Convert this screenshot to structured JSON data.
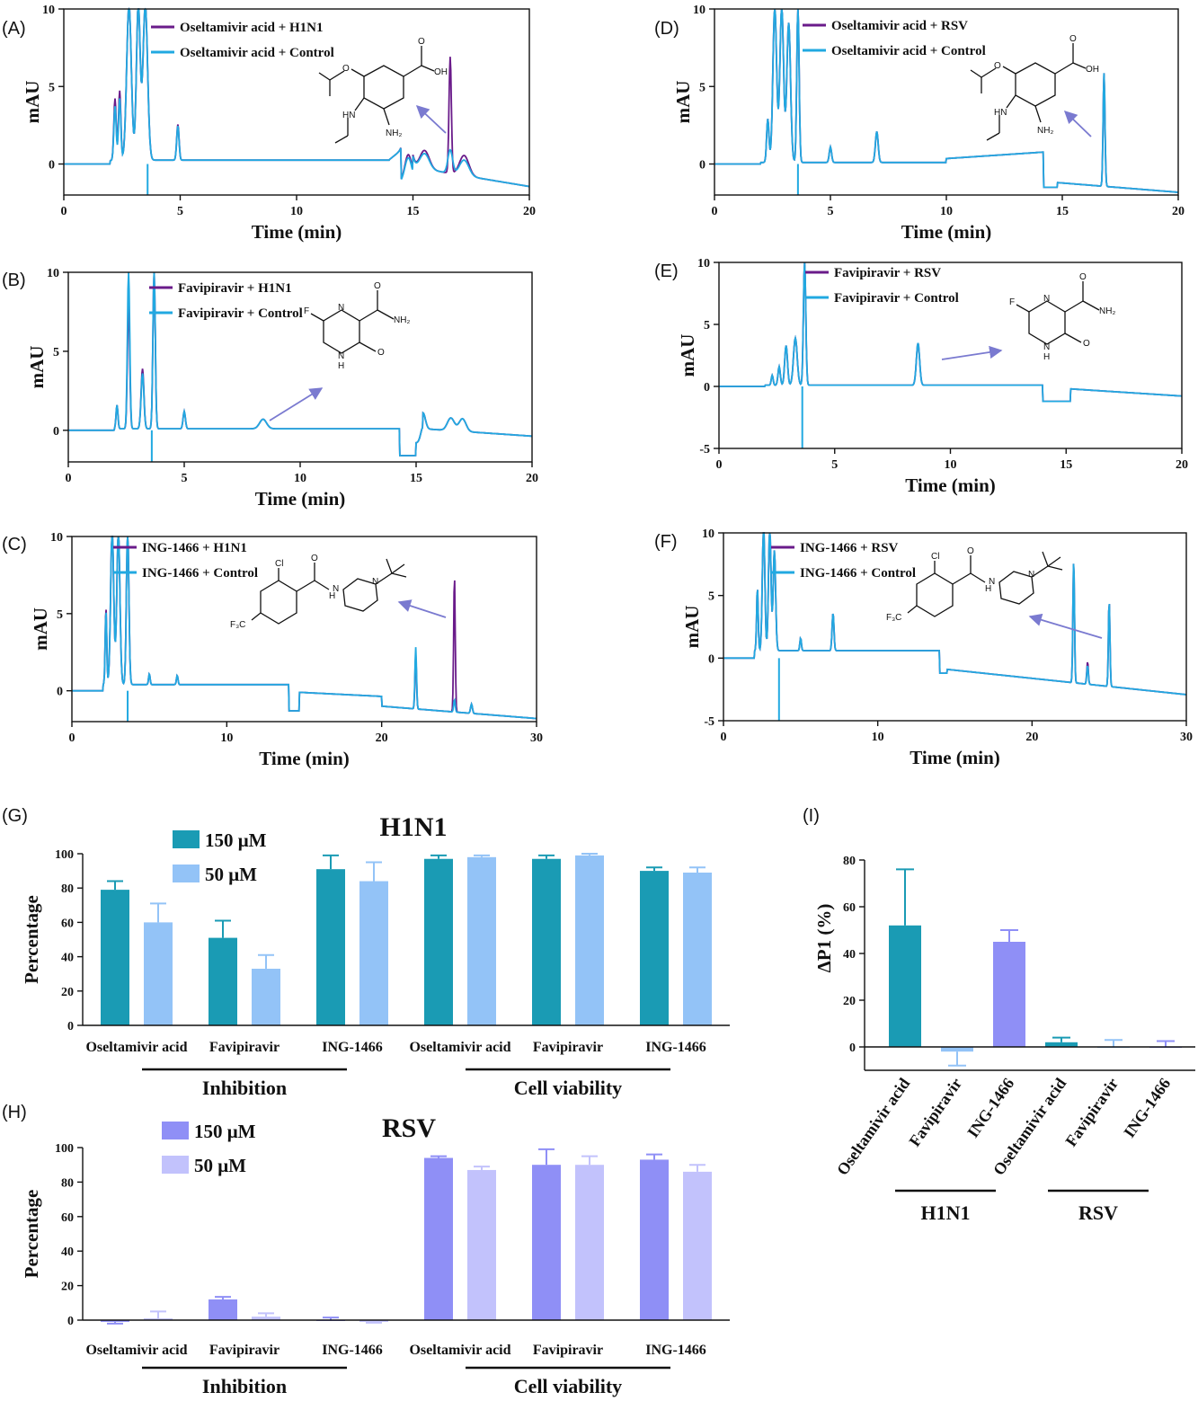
{
  "colors": {
    "treated_trace": "#6a1b8a",
    "control_trace": "#21a9e1",
    "h1n1_150": "#1a9bb4",
    "h1n1_50": "#93c3f7",
    "rsv_150": "#8f8ff6",
    "rsv_50": "#c2c2fc",
    "arrow": "#7a7ad0"
  },
  "chromatograms": [
    {
      "id": "A",
      "panel": "(A)",
      "type": "line",
      "xlabel": "Time (min)",
      "ylabel": "mAU",
      "xlim": [
        0,
        20
      ],
      "ylim": [
        -2,
        10
      ],
      "xticks": [
        "0",
        "5",
        "10",
        "15",
        "20"
      ],
      "yticks": [
        "0",
        "5",
        "10"
      ],
      "series": [
        {
          "name": "Oseltamivir acid + H1N1",
          "color": "#6a1b8a",
          "peaks": [
            [
              2.2,
              4,
              0.05
            ],
            [
              2.4,
              4.5,
              0.05
            ],
            [
              2.8,
              10,
              0.1
            ],
            [
              3.2,
              10,
              0.08
            ],
            [
              3.5,
              10,
              0.1
            ],
            [
              4.9,
              2.3,
              0.05
            ],
            [
              14.8,
              1.8,
              0.15
            ],
            [
              15.5,
              1.2,
              0.2
            ],
            [
              16.6,
              7.5,
              0.05
            ],
            [
              17.2,
              1.3,
              0.2
            ]
          ]
        },
        {
          "name": "Oseltamivir acid + Control",
          "color": "#21a9e1",
          "peaks": [
            [
              2.2,
              3.5,
              0.05
            ],
            [
              2.4,
              4,
              0.05
            ],
            [
              2.8,
              10,
              0.1
            ],
            [
              3.2,
              10,
              0.08
            ],
            [
              3.5,
              10,
              0.1
            ],
            [
              4.9,
              2.2,
              0.05
            ],
            [
              14.8,
              1.6,
              0.15
            ],
            [
              15.5,
              1,
              0.2
            ],
            [
              16.6,
              1.5,
              0.1
            ],
            [
              17.2,
              1,
              0.2
            ]
          ]
        }
      ],
      "molecule": "oseltamivir"
    },
    {
      "id": "B",
      "panel": "(B)",
      "type": "line",
      "xlabel": "Time (min)",
      "ylabel": "mAU",
      "xlim": [
        0,
        20
      ],
      "ylim": [
        -2,
        10
      ],
      "xticks": [
        "0",
        "5",
        "10",
        "15",
        "20"
      ],
      "yticks": [
        "0",
        "5",
        "10"
      ],
      "series": [
        {
          "name": "Favipiravir + H1N1",
          "color": "#6a1b8a",
          "peaks": [
            [
              2.1,
              1.5,
              0.04
            ],
            [
              2.6,
              8,
              0.05
            ],
            [
              3.2,
              3.8,
              0.06
            ],
            [
              3.7,
              10,
              0.05
            ],
            [
              5,
              1.1,
              0.05
            ],
            [
              8.4,
              0.6,
              0.15
            ],
            [
              15.3,
              1,
              0.1
            ],
            [
              16.5,
              0.8,
              0.15
            ],
            [
              17,
              0.8,
              0.15
            ]
          ]
        },
        {
          "name": "Favipiravir + Control",
          "color": "#21a9e1",
          "peaks": [
            [
              2.1,
              1.5,
              0.04
            ],
            [
              2.6,
              10,
              0.05
            ],
            [
              3.2,
              3.5,
              0.06
            ],
            [
              3.7,
              10,
              0.05
            ],
            [
              5,
              1.1,
              0.05
            ],
            [
              8.4,
              0.6,
              0.15
            ],
            [
              15.3,
              1,
              0.1
            ],
            [
              16.5,
              0.8,
              0.15
            ],
            [
              17,
              0.8,
              0.15
            ]
          ]
        }
      ],
      "molecule": "favipiravir"
    },
    {
      "id": "C",
      "panel": "(C)",
      "type": "line",
      "xlabel": "Time (min)",
      "ylabel": "mAU",
      "xlim": [
        0,
        30
      ],
      "ylim": [
        -2,
        10
      ],
      "xticks": [
        "0",
        "10",
        "20",
        "30"
      ],
      "yticks": [
        "0",
        "5",
        "10"
      ],
      "series": [
        {
          "name": "ING-1466 + H1N1",
          "color": "#6a1b8a",
          "peaks": [
            [
              2.2,
              5,
              0.05
            ],
            [
              2.6,
              10,
              0.1
            ],
            [
              3,
              10,
              0.1
            ],
            [
              3.6,
              10,
              0.08
            ],
            [
              5,
              0.7,
              0.05
            ],
            [
              6.8,
              0.6,
              0.05
            ],
            [
              22.2,
              3.5,
              0.05
            ],
            [
              24.7,
              8.8,
              0.05
            ],
            [
              25.8,
              0.6,
              0.06
            ]
          ]
        },
        {
          "name": "ING-1466 + Control",
          "color": "#21a9e1",
          "peaks": [
            [
              2.2,
              4.8,
              0.05
            ],
            [
              2.6,
              10,
              0.1
            ],
            [
              3,
              10,
              0.1
            ],
            [
              3.6,
              10,
              0.08
            ],
            [
              5,
              0.7,
              0.05
            ],
            [
              6.8,
              0.6,
              0.05
            ],
            [
              22.2,
              4,
              0.05
            ],
            [
              24.7,
              0.8,
              0.05
            ],
            [
              25.8,
              0.6,
              0.06
            ]
          ]
        }
      ],
      "molecule": "ing1466"
    },
    {
      "id": "D",
      "panel": "(D)",
      "type": "line",
      "xlabel": "Time (min)",
      "ylabel": "mAU",
      "xlim": [
        0,
        20
      ],
      "ylim": [
        -2,
        10
      ],
      "xticks": [
        "0",
        "5",
        "10",
        "15",
        "20"
      ],
      "yticks": [
        "0",
        "5",
        "10"
      ],
      "series": [
        {
          "name": "Oseltamivir acid + RSV",
          "color": "#6a1b8a",
          "peaks": [
            [
              2.3,
              2.8,
              0.05
            ],
            [
              2.6,
              10,
              0.08
            ],
            [
              2.9,
              10,
              0.08
            ],
            [
              3.2,
              9,
              0.08
            ],
            [
              3.6,
              10,
              0.05
            ],
            [
              5,
              1,
              0.05
            ],
            [
              7,
              2,
              0.06
            ],
            [
              16.8,
              7.3,
              0.04
            ]
          ]
        },
        {
          "name": "Oseltamivir acid + Control",
          "color": "#21a9e1",
          "peaks": [
            [
              2.3,
              2.8,
              0.05
            ],
            [
              2.6,
              10,
              0.08
            ],
            [
              2.9,
              10,
              0.08
            ],
            [
              3.2,
              9,
              0.08
            ],
            [
              3.6,
              10,
              0.05
            ],
            [
              5,
              1,
              0.05
            ],
            [
              7,
              2,
              0.06
            ],
            [
              16.8,
              7.3,
              0.04
            ]
          ]
        }
      ],
      "molecule": "oseltamivir"
    },
    {
      "id": "E",
      "panel": "(E)",
      "type": "line",
      "xlabel": "Time (min)",
      "ylabel": "mAU",
      "xlim": [
        0,
        20
      ],
      "ylim": [
        -5,
        10
      ],
      "xticks": [
        "0",
        "5",
        "10",
        "15",
        "20"
      ],
      "yticks": [
        "-5",
        "0",
        "5",
        "10"
      ],
      "series": [
        {
          "name": "Favipiravir + RSV",
          "color": "#6a1b8a",
          "peaks": [
            [
              2.3,
              0.8,
              0.04
            ],
            [
              2.6,
              1.5,
              0.05
            ],
            [
              2.9,
              3.2,
              0.06
            ],
            [
              3.3,
              3.8,
              0.08
            ],
            [
              3.7,
              10,
              0.05
            ],
            [
              8.6,
              3.4,
              0.07
            ]
          ]
        },
        {
          "name": "Favipiravir + Control",
          "color": "#21a9e1",
          "peaks": [
            [
              2.3,
              0.8,
              0.04
            ],
            [
              2.6,
              1.5,
              0.05
            ],
            [
              2.9,
              3.2,
              0.06
            ],
            [
              3.3,
              3.8,
              0.08
            ],
            [
              3.7,
              10,
              0.05
            ],
            [
              8.6,
              3.4,
              0.07
            ]
          ]
        }
      ],
      "molecule": "favipiravir"
    },
    {
      "id": "F",
      "panel": "(F)",
      "type": "line",
      "xlabel": "Time (min)",
      "ylabel": "mAU",
      "xlim": [
        0,
        30
      ],
      "ylim": [
        -5,
        10
      ],
      "xticks": [
        "0",
        "10",
        "20",
        "30"
      ],
      "yticks": [
        "-5",
        "0",
        "5",
        "10"
      ],
      "series": [
        {
          "name": "ING-1466 + RSV",
          "color": "#6a1b8a",
          "peaks": [
            [
              2.2,
              5,
              0.05
            ],
            [
              2.6,
              10,
              0.08
            ],
            [
              3,
              10,
              0.08
            ],
            [
              3.3,
              8,
              0.08
            ],
            [
              5,
              1,
              0.05
            ],
            [
              7.1,
              3,
              0.06
            ],
            [
              22.7,
              9.8,
              0.05
            ],
            [
              23.6,
              1.8,
              0.05
            ],
            [
              25,
              6.8,
              0.05
            ]
          ]
        },
        {
          "name": "ING-1466 + Control",
          "color": "#21a9e1",
          "peaks": [
            [
              2.2,
              5,
              0.05
            ],
            [
              2.6,
              10,
              0.08
            ],
            [
              3,
              10,
              0.08
            ],
            [
              3.3,
              8,
              0.08
            ],
            [
              5,
              1,
              0.05
            ],
            [
              7.1,
              3,
              0.06
            ],
            [
              22.7,
              9.8,
              0.05
            ],
            [
              23.6,
              1.5,
              0.05
            ],
            [
              25,
              6.8,
              0.05
            ]
          ]
        }
      ],
      "molecule": "ing1466"
    }
  ],
  "chart_data": [
    {
      "id": "G",
      "panel": "(G)",
      "type": "bar",
      "title": "H1N1",
      "ylabel": "Percentage",
      "ylim": [
        0,
        100
      ],
      "yticks": [
        "0",
        "20",
        "40",
        "60",
        "80",
        "100"
      ],
      "categories": [
        "Oseltamivir acid",
        "Favipiravir",
        "ING-1466",
        "Oseltamivir acid",
        "Favipiravir",
        "ING-1466"
      ],
      "groups": [
        "Inhibition",
        "Cell viability"
      ],
      "series": [
        {
          "name": "150 μM",
          "color": "#1a9bb4",
          "values": [
            79,
            51,
            91,
            97,
            97,
            90
          ],
          "errors": [
            5,
            10,
            8,
            2,
            2,
            2
          ]
        },
        {
          "name": "50 μM",
          "color": "#93c3f7",
          "values": [
            60,
            33,
            84,
            98,
            99,
            89
          ],
          "errors": [
            11,
            8,
            11,
            1,
            1,
            3
          ]
        }
      ]
    },
    {
      "id": "H",
      "panel": "(H)",
      "type": "bar",
      "title": "RSV",
      "ylabel": "Percentage",
      "ylim": [
        0,
        100
      ],
      "yticks": [
        "0",
        "20",
        "40",
        "60",
        "80",
        "100"
      ],
      "categories": [
        "Oseltamivir acid",
        "Favipiravir",
        "ING-1466",
        "Oseltamivir acid",
        "Favipiravir",
        "ING-1466"
      ],
      "groups": [
        "Inhibition",
        "Cell viability"
      ],
      "series": [
        {
          "name": "150 μM",
          "color": "#8f8ff6",
          "values": [
            -1,
            12,
            0,
            94,
            90,
            93
          ],
          "errors": [
            1,
            1.5,
            1.5,
            1,
            9,
            3
          ]
        },
        {
          "name": "50 μM",
          "color": "#c2c2fc",
          "values": [
            1,
            2,
            -1,
            87,
            90,
            86
          ],
          "errors": [
            4,
            2,
            0.5,
            2,
            5,
            4
          ]
        }
      ]
    },
    {
      "id": "I",
      "panel": "(I)",
      "type": "bar",
      "ylabel": "ΔP1 (%)",
      "ylim": [
        -10,
        80
      ],
      "yticks": [
        "0",
        "20",
        "40",
        "60",
        "80"
      ],
      "categories": [
        "Oseltamivir acid",
        "Favipiravir",
        "ING-1466",
        "Oseltamivir acid",
        "Favipiravir",
        "ING-1466"
      ],
      "groups": [
        "H1N1",
        "RSV"
      ],
      "values": [
        52,
        -2,
        45,
        2,
        0,
        0
      ],
      "errors": [
        24,
        6,
        5,
        2,
        3,
        2.5
      ],
      "colors": [
        "#1a9bb4",
        "#93c3f7",
        "#8f8ff6",
        "#1a9bb4",
        "#93c3f7",
        "#8f8ff6"
      ]
    }
  ]
}
